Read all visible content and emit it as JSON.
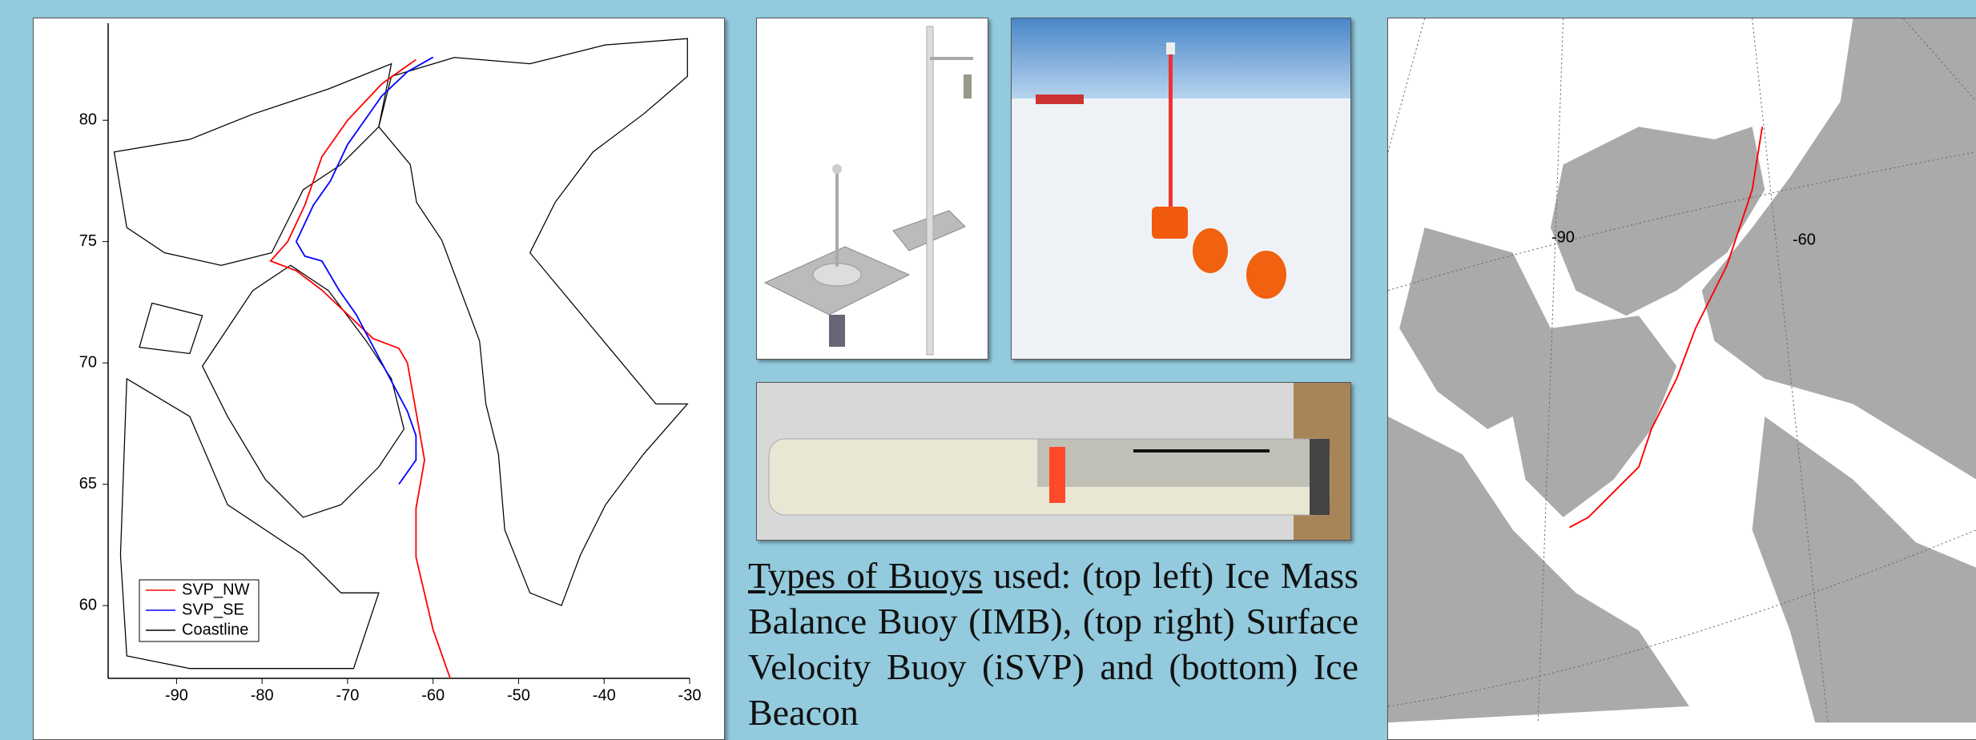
{
  "chart_data": {
    "type": "line",
    "xlim": [
      -98,
      -30
    ],
    "ylim": [
      57,
      84
    ],
    "xticks": [
      -90,
      -80,
      -70,
      -60,
      -50,
      -40,
      -30
    ],
    "yticks": [
      60,
      65,
      70,
      75,
      80
    ],
    "series": [
      {
        "name": "SVP_NW",
        "color": "#ff0000",
        "x": [
          -62,
          -66,
          -70,
          -73,
          -75,
          -77,
          -79,
          -76,
          -73,
          -70,
          -67,
          -64,
          -63,
          -62,
          -61,
          -62,
          -62,
          -61,
          -60,
          -59,
          -58
        ],
        "values": [
          82.5,
          81.5,
          80,
          78.5,
          76.5,
          75,
          74.2,
          73.8,
          73,
          72,
          71,
          70.6,
          70,
          68,
          66,
          64,
          62,
          60.5,
          59,
          58,
          57
        ]
      },
      {
        "name": "SVP_SE",
        "color": "#0000ff",
        "x": [
          -60,
          -63,
          -66,
          -70,
          -72,
          -74,
          -76,
          -75,
          -73,
          -71,
          -69,
          -66,
          -63,
          -62,
          -62,
          -63,
          -64
        ],
        "values": [
          82.6,
          82,
          81,
          79,
          77.5,
          76.5,
          75,
          74.4,
          74.2,
          73,
          72,
          70,
          68,
          67,
          66,
          65.5,
          65
        ]
      }
    ],
    "coastline": {
      "name": "Coastline",
      "color": "#000000"
    },
    "legend": "lower left"
  },
  "caption": {
    "emphasis": "Types of Buoys",
    "text": "used: (top left) Ice Mass Balance Buoy (IMB), (top right) Surface Velocity Buoy (iSVP) and (bottom) Ice Beacon"
  },
  "map": {
    "labels": [
      "-90",
      "-60"
    ]
  }
}
